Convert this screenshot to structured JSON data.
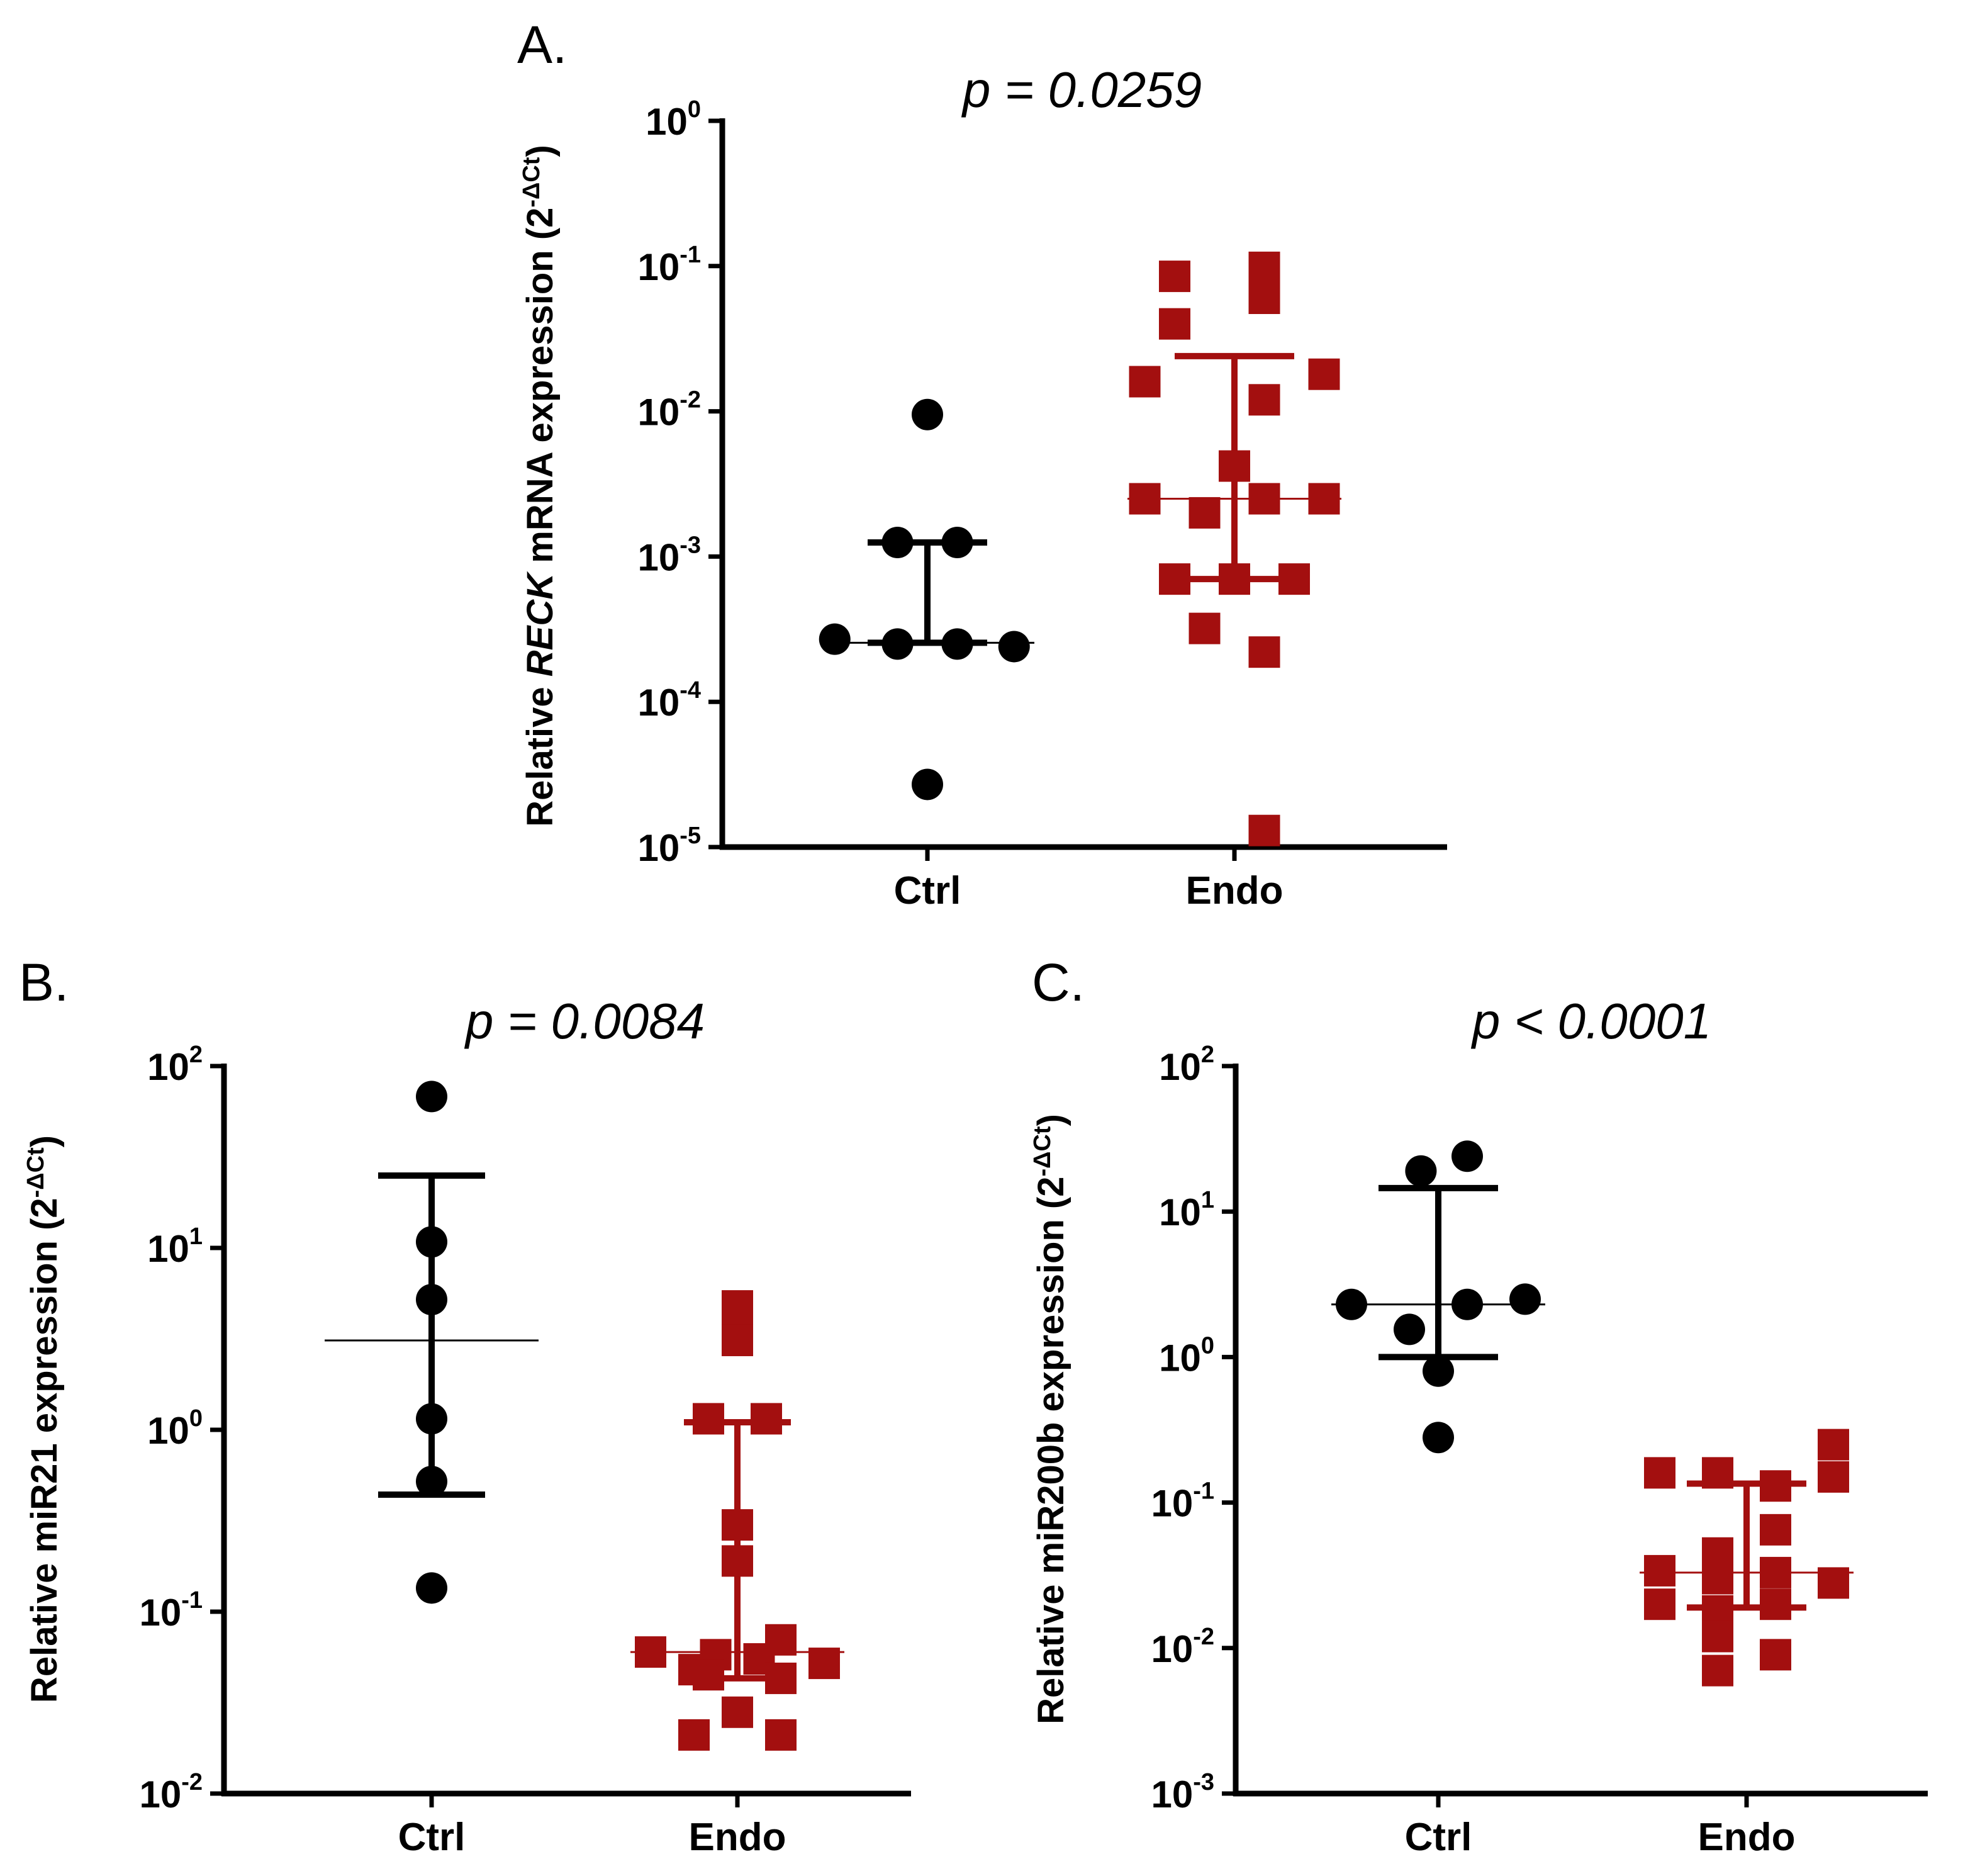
{
  "colors": {
    "ctrl": "#000000",
    "endo": "#a30f0f",
    "axis": "#000000"
  },
  "chart_data": [
    {
      "panel": "A.",
      "type": "scatter",
      "title": "p = 0.0259",
      "ylabel": {
        "prefix": "Relative ",
        "gene": "RECK",
        "suffix": " mRNA expression (2",
        "sup": "-ΔCt",
        "close": ")"
      },
      "yscale": "log10",
      "ylim_exp": [
        -5,
        0
      ],
      "yticks": [
        {
          "base": "10",
          "exp": "0"
        },
        {
          "base": "10",
          "exp": "-1"
        },
        {
          "base": "10",
          "exp": "-2"
        },
        {
          "base": "10",
          "exp": "-3"
        },
        {
          "base": "10",
          "exp": "-4"
        },
        {
          "base": "10",
          "exp": "-5"
        }
      ],
      "categories": [
        "Ctrl",
        "Endo"
      ],
      "series": [
        {
          "name": "Ctrl",
          "marker": "circle",
          "values": [
            0.0095,
            0.00125,
            0.00125,
            0.00027,
            0.00025,
            0.00025,
            0.00024,
            2.7e-05
          ],
          "offsets": [
            0,
            -0.5,
            0.5,
            -1.55,
            -0.5,
            0.5,
            1.45,
            0
          ],
          "median": 0.000255,
          "q1": 0.000255,
          "q3": 0.00125
        },
        {
          "name": "Endo",
          "marker": "square",
          "values": [
            0.085,
            0.098,
            0.06,
            0.04,
            0.016,
            0.018,
            0.012,
            0.0042,
            0.0025,
            0.002,
            0.0025,
            0.0025,
            0.0007,
            0.0007,
            0.0007,
            0.00032,
            0.00022,
            1.3e-05
          ],
          "offsets": [
            -1,
            0.5,
            0.5,
            -1,
            -1.5,
            1.5,
            0.5,
            0,
            -1.5,
            -0.5,
            0.5,
            1.5,
            -1,
            0,
            1,
            -0.5,
            0.5,
            0.5
          ],
          "median": 0.0025,
          "q1": 0.0007,
          "q3": 0.024
        }
      ]
    },
    {
      "panel": "B.",
      "type": "scatter",
      "title": "p = 0.0084",
      "ylabel": {
        "prefix": "Relative miR21 expression (2",
        "gene": "",
        "suffix": "",
        "sup": "-ΔCt",
        "close": ")"
      },
      "yscale": "log10",
      "ylim_exp": [
        -2,
        2
      ],
      "yticks": [
        {
          "base": "10",
          "exp": "2"
        },
        {
          "base": "10",
          "exp": "1"
        },
        {
          "base": "10",
          "exp": "0"
        },
        {
          "base": "10",
          "exp": "-1"
        },
        {
          "base": "10",
          "exp": "-2"
        }
      ],
      "categories": [
        "Ctrl",
        "Endo"
      ],
      "series": [
        {
          "name": "Ctrl",
          "marker": "circle",
          "values": [
            68,
            10.8,
            5.2,
            1.15,
            0.52,
            0.135
          ],
          "offsets": [
            0,
            0,
            0,
            0,
            0,
            0
          ],
          "median": 3.1,
          "q1": 0.44,
          "q3": 25
        },
        {
          "name": "Endo",
          "marker": "square",
          "values": [
            4.8,
            4.0,
            3.1,
            1.15,
            1.15,
            0.3,
            0.19,
            0.07,
            0.06,
            0.058,
            0.055,
            0.052,
            0.048,
            0.045,
            0.043,
            0.028,
            0.021,
            0.021
          ],
          "offsets": [
            0,
            0,
            0,
            -0.4,
            0.4,
            0,
            0,
            0.6,
            -1.2,
            -0.3,
            0.3,
            1.2,
            -0.6,
            -0.4,
            0.6,
            0,
            -0.6,
            0.6
          ],
          "median": 0.06,
          "q1": 0.043,
          "q3": 1.1
        }
      ]
    },
    {
      "panel": "C.",
      "type": "scatter",
      "title": "p < 0.0001",
      "ylabel": {
        "prefix": "Relative miR200b expression (2",
        "gene": "",
        "suffix": "",
        "sup": "-ΔCt",
        "close": ")"
      },
      "yscale": "log10",
      "ylim_exp": [
        -3,
        2
      ],
      "yticks": [
        {
          "base": "10",
          "exp": "2"
        },
        {
          "base": "10",
          "exp": "1"
        },
        {
          "base": "10",
          "exp": "0"
        },
        {
          "base": "10",
          "exp": "-1"
        },
        {
          "base": "10",
          "exp": "-2"
        },
        {
          "base": "10",
          "exp": "-3"
        }
      ],
      "categories": [
        "Ctrl",
        "Endo"
      ],
      "series": [
        {
          "name": "Ctrl",
          "marker": "circle",
          "values": [
            24,
            19,
            2.5,
            2.3,
            2.3,
            1.55,
            0.8,
            0.28
          ],
          "offsets": [
            0.5,
            -0.3,
            1.5,
            -1.5,
            0.5,
            -0.5,
            0,
            0
          ],
          "median": 2.3,
          "q1": 1.0,
          "q3": 14.5
        },
        {
          "name": "Endo",
          "marker": "square",
          "values": [
            0.25,
            0.16,
            0.16,
            0.15,
            0.13,
            0.065,
            0.045,
            0.034,
            0.033,
            0.03,
            0.028,
            0.02,
            0.02,
            0.018,
            0.012,
            0.009,
            0.007
          ],
          "offsets": [
            1.5,
            -1.5,
            -0.5,
            1.5,
            0.5,
            0.5,
            -0.5,
            -1.5,
            0.5,
            -0.5,
            1.5,
            -1.5,
            0.5,
            -0.5,
            -0.5,
            0.5,
            -0.5
          ],
          "median": 0.033,
          "q1": 0.019,
          "q3": 0.135
        }
      ]
    }
  ]
}
